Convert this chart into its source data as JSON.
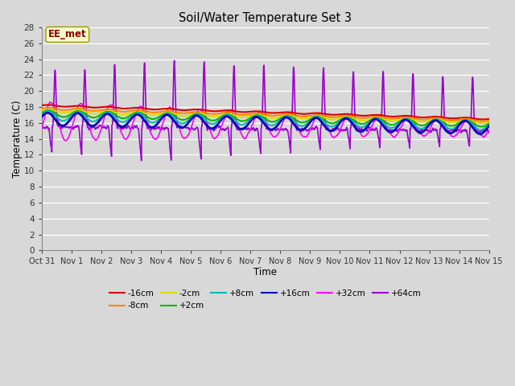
{
  "title": "Soil/Water Temperature Set 3",
  "xlabel": "Time",
  "ylabel": "Temperature (C)",
  "ylim": [
    0,
    28
  ],
  "yticks": [
    0,
    2,
    4,
    6,
    8,
    10,
    12,
    14,
    16,
    18,
    20,
    22,
    24,
    26,
    28
  ],
  "xtick_labels": [
    "Oct 31",
    "Nov 1",
    "Nov 2",
    "Nov 3",
    "Nov 4",
    "Nov 5",
    "Nov 6",
    "Nov 7",
    "Nov 8",
    "Nov 9",
    "Nov 10",
    "Nov 11",
    "Nov 12",
    "Nov 13",
    "Nov 14",
    "Nov 15"
  ],
  "background_color": "#d8d8d8",
  "annotation_text": "EE_met",
  "annotation_color": "#8b0000",
  "annotation_bg": "#ffffcc",
  "series_order": [
    "-16cm",
    "-8cm",
    "-2cm",
    "+2cm",
    "+8cm",
    "+16cm",
    "+32cm",
    "+64cm"
  ],
  "series": {
    "-16cm": {
      "color": "#dd0000",
      "lw": 1.5,
      "zorder": 6
    },
    "-8cm": {
      "color": "#ff8800",
      "lw": 1.5,
      "zorder": 6
    },
    "-2cm": {
      "color": "#dddd00",
      "lw": 1.5,
      "zorder": 6
    },
    "+2cm": {
      "color": "#00bb00",
      "lw": 1.5,
      "zorder": 6
    },
    "+8cm": {
      "color": "#00bbbb",
      "lw": 1.5,
      "zorder": 6
    },
    "+16cm": {
      "color": "#0000bb",
      "lw": 2.0,
      "zorder": 7
    },
    "+32cm": {
      "color": "#ff00ff",
      "lw": 1.2,
      "zorder": 5
    },
    "+64cm": {
      "color": "#9900cc",
      "lw": 1.2,
      "zorder": 4
    }
  }
}
